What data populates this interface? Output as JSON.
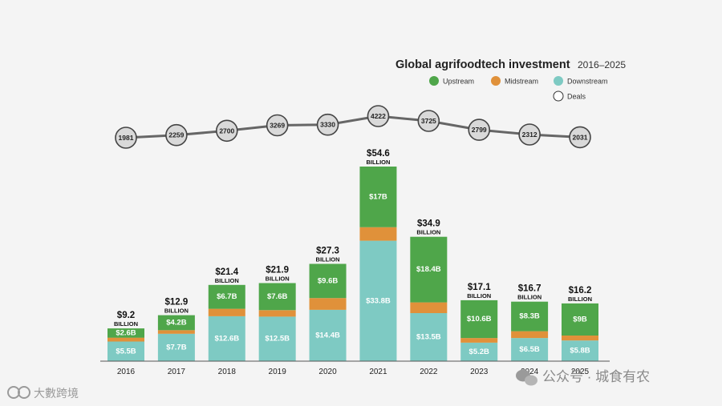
{
  "chart_data": {
    "type": "bar",
    "stacked": true,
    "title": "Global agrifoodtech investment",
    "title_years": "2016–2025",
    "categories": [
      "2016",
      "2017",
      "2018",
      "2019",
      "2020",
      "2021",
      "2022",
      "2023",
      "2024",
      "2025"
    ],
    "unit_word": "BILLION",
    "totals": [
      9.2,
      12.9,
      21.4,
      21.9,
      27.3,
      54.6,
      34.9,
      17.1,
      16.7,
      16.2
    ],
    "total_labels": [
      "$9.2",
      "$12.9",
      "$21.4",
      "$21.9",
      "$27.3",
      "$54.6",
      "$34.9",
      "$17.1",
      "$16.7",
      "$16.2"
    ],
    "series": [
      {
        "name": "Downstream",
        "color": "#7ecac3",
        "values": [
          5.5,
          7.7,
          12.6,
          12.5,
          14.4,
          33.8,
          13.5,
          5.2,
          6.5,
          5.8
        ],
        "labels": [
          "$5.5B",
          "$7.7B",
          "$12.6B",
          "$12.5B",
          "$14.4B",
          "$33.8B",
          "$13.5B",
          "$5.2B",
          "$6.5B",
          "$5.8B"
        ]
      },
      {
        "name": "Midstream",
        "color": "#e0913a",
        "values": [
          1.1,
          1.0,
          2.1,
          1.8,
          3.3,
          3.8,
          3.0,
          1.3,
          1.9,
          1.4
        ],
        "labels": [
          "",
          "",
          "",
          "",
          "",
          "",
          "",
          "",
          "",
          ""
        ]
      },
      {
        "name": "Upstream",
        "color": "#4fa64a",
        "values": [
          2.6,
          4.2,
          6.7,
          7.6,
          9.6,
          17.0,
          18.4,
          10.6,
          8.3,
          9.0
        ],
        "labels": [
          "$2.6B",
          "$4.2B",
          "$6.7B",
          "$7.6B",
          "$9.6B",
          "$17B",
          "$18.4B",
          "$10.6B",
          "$8.3B",
          "$9B"
        ]
      }
    ],
    "deals": {
      "name": "Deals",
      "values": [
        1981,
        2259,
        2700,
        3269,
        3330,
        4222,
        3725,
        2799,
        2312,
        2031
      ],
      "labels": [
        "1981",
        "2259",
        "2700",
        "3269",
        "3330",
        "4222",
        "3725",
        "2799",
        "2312",
        "2031"
      ]
    },
    "legend": [
      "Upstream",
      "Midstream",
      "Downstream",
      "Deals"
    ],
    "legend_position": "top-right",
    "ylim": [
      0,
      60
    ]
  },
  "watermark": {
    "left_text": "大數跨境",
    "right_text": "公众号 · 城食有农"
  }
}
